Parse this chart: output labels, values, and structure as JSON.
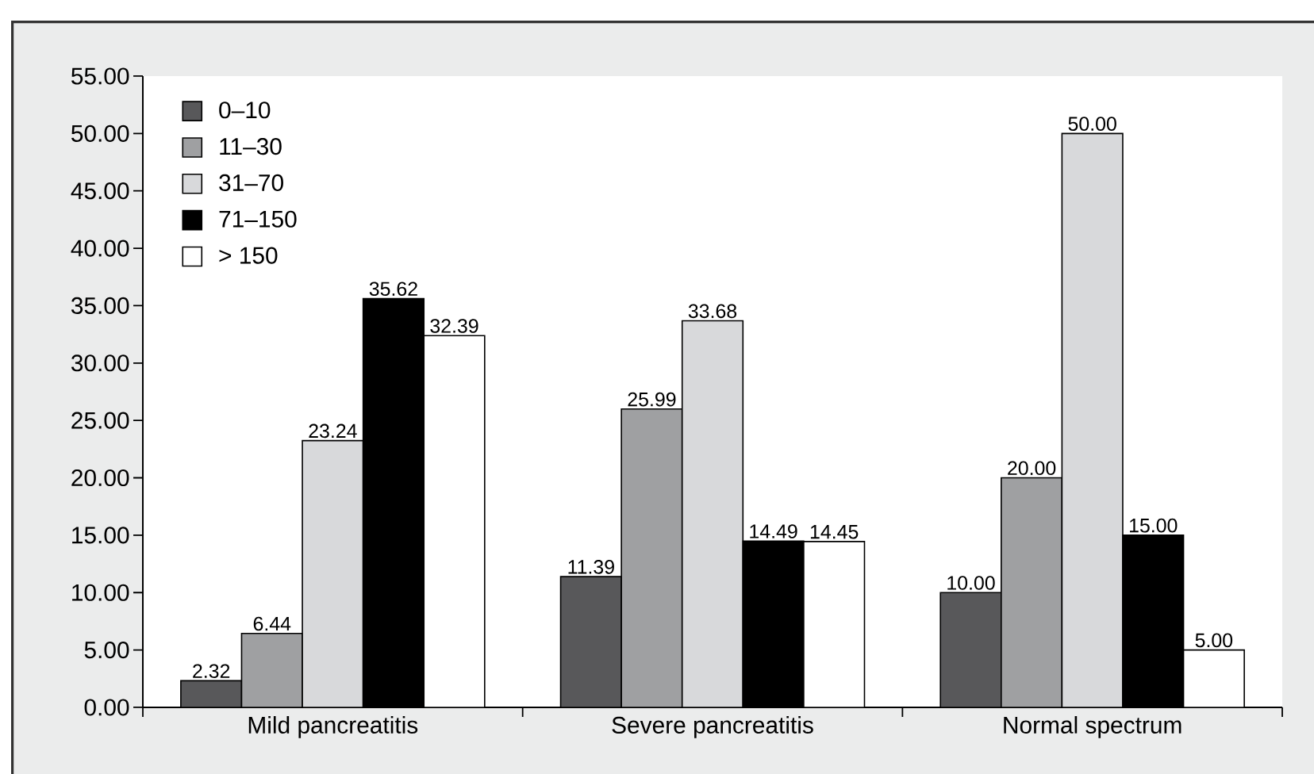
{
  "chart_data": {
    "type": "bar",
    "categories": [
      "Mild pancreatitis",
      "Severe pancreatitis",
      "Normal spectrum"
    ],
    "series": [
      {
        "name": "0–10",
        "color": "#58585a",
        "values": [
          2.32,
          11.39,
          10.0
        ],
        "value_labels": [
          "2.32",
          "11.39",
          "10.00"
        ]
      },
      {
        "name": "11–30",
        "color": "#9fa0a2",
        "values": [
          6.44,
          25.99,
          20.0
        ],
        "value_labels": [
          "6.44",
          "25.99",
          "20.00"
        ]
      },
      {
        "name": "31–70",
        "color": "#d8d9db",
        "values": [
          23.24,
          33.68,
          50.0
        ],
        "value_labels": [
          "23.24",
          "33.68",
          "50.00"
        ]
      },
      {
        "name": "71–150",
        "color": "#000000",
        "values": [
          35.62,
          14.49,
          15.0
        ],
        "value_labels": [
          "35.62",
          "14.49",
          "15.00"
        ]
      },
      {
        "name": "> 150",
        "color": "#ffffff",
        "values": [
          32.39,
          14.45,
          5.0
        ],
        "value_labels": [
          "32.39",
          "14.45",
          "5.00"
        ]
      }
    ],
    "ylim": [
      0,
      55
    ],
    "yticks": [
      {
        "value": 0,
        "label": "0.00"
      },
      {
        "value": 5,
        "label": "5.00"
      },
      {
        "value": 10,
        "label": "10.00"
      },
      {
        "value": 15,
        "label": "15.00"
      },
      {
        "value": 20,
        "label": "20.00"
      },
      {
        "value": 25,
        "label": "25.00"
      },
      {
        "value": 30,
        "label": "30.00"
      },
      {
        "value": 35,
        "label": "35.00"
      },
      {
        "value": 40,
        "label": "40.00"
      },
      {
        "value": 45,
        "label": "45.00"
      },
      {
        "value": 50,
        "label": "50.00"
      },
      {
        "value": 55,
        "label": "55.00"
      }
    ],
    "legend": "top left"
  }
}
